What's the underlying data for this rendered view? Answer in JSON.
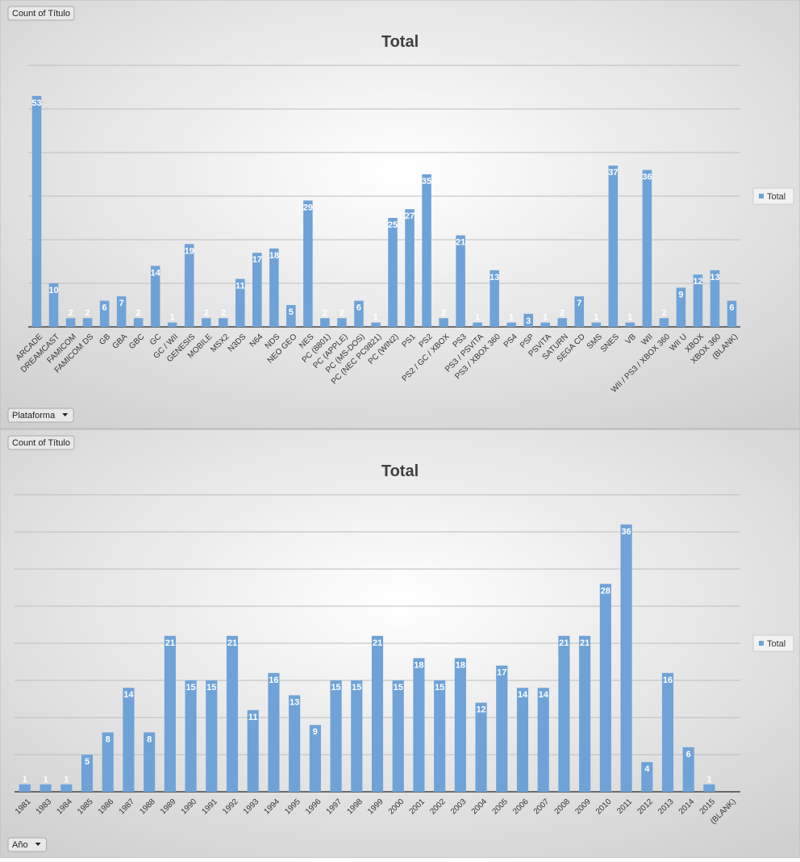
{
  "chart_data": [
    {
      "type": "bar",
      "title": "Total",
      "field_button": "Count of Título",
      "axis_button": "Plataforma",
      "categories": [
        "ARCADE",
        "DREAMCAST",
        "FAMICOM",
        "FAMICOM DS",
        "GB",
        "GBA",
        "GBC",
        "GC",
        "GC / WII",
        "GENESIS",
        "MOBILE",
        "MSX2",
        "N3DS",
        "N64",
        "NDS",
        "NEO GEO",
        "NES",
        "PC (8801)",
        "PC (APPLE)",
        "PC (MS-DOS)",
        "PC (NEC PC9821)",
        "PC (WIN2)",
        "PS1",
        "PS2",
        "PS2 / GC / XBOX",
        "PS3",
        "PS3 / PSVITA",
        "PS3 / XBOX 360",
        "PS4",
        "PSP",
        "PSVITA",
        "SATURN",
        "SEGA CD",
        "SMS",
        "SNES",
        "VB",
        "WII",
        "WII / PS3 / XBOX 360",
        "WII U",
        "XBOX",
        "XBOX 360",
        "(BLANK)"
      ],
      "series": [
        {
          "name": "Total",
          "color": "#6fa3d8",
          "values": [
            53,
            10,
            2,
            2,
            6,
            7,
            2,
            14,
            1,
            19,
            2,
            2,
            11,
            17,
            18,
            5,
            29,
            2,
            2,
            6,
            1,
            25,
            27,
            35,
            2,
            21,
            1,
            13,
            1,
            3,
            1,
            2,
            7,
            1,
            37,
            1,
            36,
            2,
            9,
            12,
            13,
            6
          ]
        }
      ],
      "ylim": [
        0,
        60
      ],
      "gridlines": [
        0,
        10,
        20,
        30,
        40,
        50,
        60
      ],
      "legend": "right"
    },
    {
      "type": "bar",
      "title": "Total",
      "field_button": "Count of Título",
      "axis_button": "Año",
      "categories": [
        "1981",
        "1983",
        "1984",
        "1985",
        "1986",
        "1987",
        "1988",
        "1989",
        "1990",
        "1991",
        "1992",
        "1993",
        "1994",
        "1995",
        "1996",
        "1997",
        "1998",
        "1999",
        "2000",
        "2001",
        "2002",
        "2003",
        "2004",
        "2005",
        "2006",
        "2007",
        "2008",
        "2009",
        "2010",
        "2011",
        "2012",
        "2013",
        "2014",
        "2015",
        "(BLANK)"
      ],
      "series": [
        {
          "name": "Total",
          "color": "#6fa3d8",
          "values": [
            1,
            1,
            1,
            5,
            8,
            14,
            8,
            21,
            15,
            15,
            21,
            11,
            16,
            13,
            9,
            15,
            15,
            21,
            15,
            18,
            15,
            18,
            12,
            17,
            14,
            14,
            21,
            21,
            28,
            36,
            4,
            16,
            6,
            1,
            null
          ]
        }
      ],
      "ylim": [
        0,
        40
      ],
      "gridlines": [
        0,
        5,
        10,
        15,
        20,
        25,
        30,
        35,
        40
      ],
      "legend": "right"
    }
  ]
}
